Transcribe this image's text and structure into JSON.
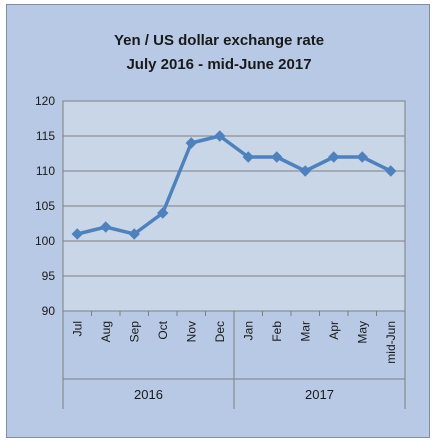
{
  "chart_data": {
    "type": "line",
    "title": "Yen / US dollar exchange rate",
    "subtitle": "July 2016 - mid-June 2017",
    "categories": [
      "Jul",
      "Aug",
      "Sep",
      "Oct",
      "Nov",
      "Dec",
      "Jan",
      "Feb",
      "Mar",
      "Apr",
      "May",
      "mid-Jun"
    ],
    "groups": [
      {
        "label": "2016",
        "start": 0,
        "end": 5
      },
      {
        "label": "2017",
        "start": 6,
        "end": 11
      }
    ],
    "series": [
      {
        "values": [
          101,
          102,
          101,
          104,
          114,
          115,
          112,
          112,
          110,
          112,
          112,
          110
        ]
      }
    ],
    "ylim": [
      90,
      120
    ],
    "yticks": [
      90,
      95,
      100,
      105,
      110,
      115,
      120
    ],
    "grid": true,
    "legend": "none",
    "colors": {
      "line": "#4f81bd",
      "plot_bg": "#c9d6e8",
      "chart_bg": "#b7c9e4",
      "grid": "#7f7f7f"
    }
  }
}
